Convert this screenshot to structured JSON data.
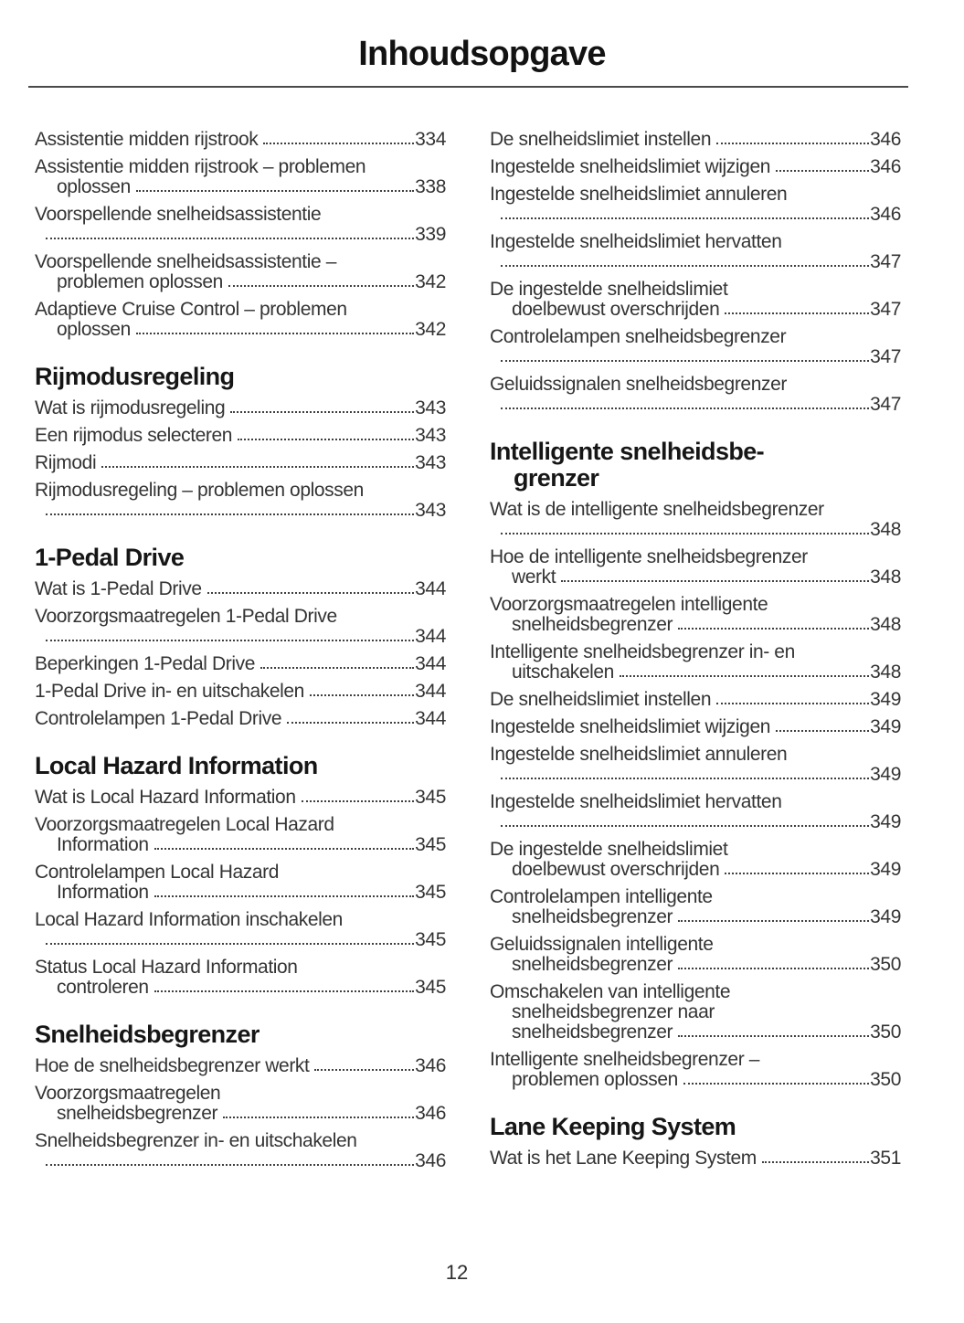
{
  "page": {
    "title": "Inhoudsopgave",
    "number": "12"
  },
  "toc": {
    "left": [
      {
        "type": "entry",
        "lines": [
          "Assistentie midden rijstrook"
        ],
        "page": "334"
      },
      {
        "type": "entry",
        "lines": [
          "Assistentie midden rijstrook – problemen",
          "oplossen"
        ],
        "page": "338"
      },
      {
        "type": "entry",
        "lines": [
          "Voorspellende snelheidsassistentie"
        ],
        "page": "339",
        "dots_new_line": true
      },
      {
        "type": "entry",
        "lines": [
          "Voorspellende snelheidsassistentie –",
          "problemen oplossen"
        ],
        "page": "342"
      },
      {
        "type": "entry",
        "lines": [
          "Adaptieve Cruise Control – problemen",
          "oplossen"
        ],
        "page": "342"
      },
      {
        "type": "heading",
        "lines": [
          "Rijmodusregeling"
        ]
      },
      {
        "type": "entry",
        "lines": [
          "Wat is rijmodusregeling"
        ],
        "page": "343"
      },
      {
        "type": "entry",
        "lines": [
          "Een rijmodus selecteren"
        ],
        "page": "343"
      },
      {
        "type": "entry",
        "lines": [
          "Rijmodi"
        ],
        "page": "343"
      },
      {
        "type": "entry",
        "lines": [
          "Rijmodusregeling – problemen oplossen"
        ],
        "page": "343",
        "dots_new_line": true
      },
      {
        "type": "heading",
        "lines": [
          "1-Pedal Drive"
        ]
      },
      {
        "type": "entry",
        "lines": [
          "Wat is 1-Pedal Drive"
        ],
        "page": "344"
      },
      {
        "type": "entry",
        "lines": [
          "Voorzorgsmaatregelen 1-Pedal Drive"
        ],
        "page": "344",
        "dots_new_line": true
      },
      {
        "type": "entry",
        "lines": [
          "Beperkingen 1-Pedal Drive"
        ],
        "page": "344"
      },
      {
        "type": "entry",
        "lines": [
          "1-Pedal Drive in- en uitschakelen"
        ],
        "page": "344"
      },
      {
        "type": "entry",
        "lines": [
          "Controlelampen 1-Pedal Drive"
        ],
        "page": "344"
      },
      {
        "type": "heading",
        "lines": [
          "Local Hazard Information"
        ]
      },
      {
        "type": "entry",
        "lines": [
          "Wat is Local Hazard Information"
        ],
        "page": "345"
      },
      {
        "type": "entry",
        "lines": [
          "Voorzorgsmaatregelen Local Hazard",
          "Information"
        ],
        "page": "345"
      },
      {
        "type": "entry",
        "lines": [
          "Controlelampen Local Hazard",
          "Information"
        ],
        "page": "345"
      },
      {
        "type": "entry",
        "lines": [
          "Local Hazard Information inschakelen"
        ],
        "page": "345",
        "dots_new_line": true
      },
      {
        "type": "entry",
        "lines": [
          "Status Local Hazard Information",
          "controleren"
        ],
        "page": "345"
      },
      {
        "type": "heading",
        "lines": [
          "Snelheidsbegrenzer"
        ]
      },
      {
        "type": "entry",
        "lines": [
          "Hoe de snelheidsbegrenzer werkt"
        ],
        "page": "346"
      },
      {
        "type": "entry",
        "lines": [
          "Voorzorgsmaatregelen",
          "snelheidsbegrenzer"
        ],
        "page": "346"
      },
      {
        "type": "entry",
        "lines": [
          "Snelheidsbegrenzer in- en uitschakelen"
        ],
        "page": "346",
        "dots_new_line": true
      }
    ],
    "right": [
      {
        "type": "entry",
        "lines": [
          "De snelheidslimiet instellen"
        ],
        "page": "346"
      },
      {
        "type": "entry",
        "lines": [
          "Ingestelde snelheidslimiet wijzigen"
        ],
        "page": "346"
      },
      {
        "type": "entry",
        "lines": [
          "Ingestelde snelheidslimiet annuleren"
        ],
        "page": "346",
        "dots_new_line": true
      },
      {
        "type": "entry",
        "lines": [
          "Ingestelde snelheidslimiet hervatten"
        ],
        "page": "347",
        "dots_new_line": true
      },
      {
        "type": "entry",
        "lines": [
          "De ingestelde snelheidslimiet",
          "doelbewust overschrijden"
        ],
        "page": "347"
      },
      {
        "type": "entry",
        "lines": [
          "Controlelampen snelheidsbegrenzer"
        ],
        "page": "347",
        "dots_new_line": true
      },
      {
        "type": "entry",
        "lines": [
          "Geluidssignalen snelheidsbegrenzer"
        ],
        "page": "347",
        "dots_new_line": true
      },
      {
        "type": "heading",
        "lines": [
          "Intelligente snelheidsbe-",
          "grenzer"
        ]
      },
      {
        "type": "entry",
        "lines": [
          "Wat is de intelligente snelheidsbegrenzer"
        ],
        "page": "348",
        "dots_new_line": true
      },
      {
        "type": "entry",
        "lines": [
          "Hoe de intelligente snelheidsbegrenzer",
          "werkt"
        ],
        "page": "348"
      },
      {
        "type": "entry",
        "lines": [
          "Voorzorgsmaatregelen intelligente",
          "snelheidsbegrenzer"
        ],
        "page": "348"
      },
      {
        "type": "entry",
        "lines": [
          "Intelligente snelheidsbegrenzer in- en",
          "uitschakelen"
        ],
        "page": "348"
      },
      {
        "type": "entry",
        "lines": [
          "De snelheidslimiet instellen"
        ],
        "page": "349"
      },
      {
        "type": "entry",
        "lines": [
          "Ingestelde snelheidslimiet wijzigen"
        ],
        "page": "349"
      },
      {
        "type": "entry",
        "lines": [
          "Ingestelde snelheidslimiet annuleren"
        ],
        "page": "349",
        "dots_new_line": true
      },
      {
        "type": "entry",
        "lines": [
          "Ingestelde snelheidslimiet hervatten"
        ],
        "page": "349",
        "dots_new_line": true
      },
      {
        "type": "entry",
        "lines": [
          "De ingestelde snelheidslimiet",
          "doelbewust overschrijden"
        ],
        "page": "349"
      },
      {
        "type": "entry",
        "lines": [
          "Controlelampen intelligente",
          "snelheidsbegrenzer"
        ],
        "page": "349"
      },
      {
        "type": "entry",
        "lines": [
          "Geluidssignalen intelligente",
          "snelheidsbegrenzer"
        ],
        "page": "350"
      },
      {
        "type": "entry",
        "lines": [
          "Omschakelen van intelligente",
          "snelheidsbegrenzer naar",
          "snelheidsbegrenzer"
        ],
        "page": "350"
      },
      {
        "type": "entry",
        "lines": [
          "Intelligente snelheidsbegrenzer –",
          "problemen oplossen"
        ],
        "page": "350"
      },
      {
        "type": "heading",
        "lines": [
          "Lane Keeping System"
        ]
      },
      {
        "type": "entry",
        "lines": [
          "Wat is het Lane Keeping System"
        ],
        "page": "351"
      }
    ]
  }
}
